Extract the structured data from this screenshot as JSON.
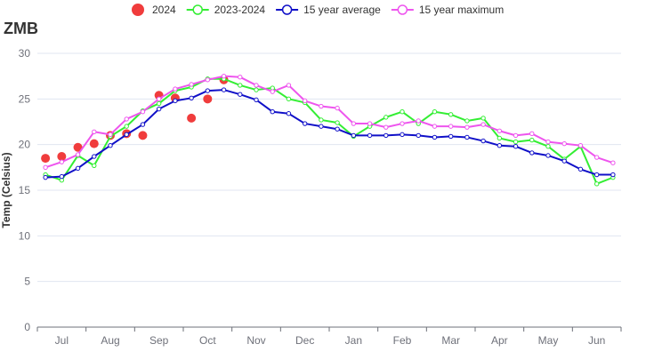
{
  "chart_data": {
    "type": "line",
    "title": "ZMB",
    "xlabel": "",
    "ylabel": "Temp (Celsius)",
    "ylim": [
      0,
      30
    ],
    "yticks": [
      0,
      5,
      10,
      15,
      20,
      25,
      30
    ],
    "x_dekads": 36,
    "month_labels": [
      "Jul",
      "Aug",
      "Sep",
      "Oct",
      "Nov",
      "Dec",
      "Jan",
      "Feb",
      "Mar",
      "Apr",
      "May",
      "Jun"
    ],
    "grid": "horizontal",
    "legend_position": "top-center",
    "series": [
      {
        "name": "2024",
        "style": "scatter",
        "color": "#f03c3c",
        "x": [
          0,
          1,
          2,
          3,
          4,
          5,
          6,
          7,
          8,
          9,
          10,
          11
        ],
        "values": [
          18.5,
          18.7,
          19.7,
          20.1,
          21.0,
          21.2,
          21.0,
          25.4,
          25.1,
          22.9,
          25.0,
          27.1
        ]
      },
      {
        "name": "2023-2024",
        "style": "line",
        "color": "#33ee33",
        "values": [
          16.7,
          16.1,
          18.8,
          17.7,
          20.9,
          22.0,
          23.7,
          24.5,
          25.9,
          26.3,
          27.2,
          27.2,
          26.5,
          26.0,
          26.2,
          25.0,
          24.6,
          22.7,
          22.4,
          20.9,
          22.0,
          23.0,
          23.6,
          22.3,
          23.6,
          23.3,
          22.6,
          22.9,
          20.7,
          20.3,
          20.5,
          19.8,
          18.4,
          19.8,
          15.7,
          16.4
        ]
      },
      {
        "name": "15 year average",
        "style": "line",
        "color": "#1010c8",
        "values": [
          16.4,
          16.5,
          17.4,
          18.7,
          19.9,
          21.1,
          22.2,
          23.9,
          24.8,
          25.1,
          25.9,
          26.0,
          25.5,
          24.9,
          23.6,
          23.4,
          22.3,
          22.0,
          21.7,
          21.0,
          21.0,
          21.0,
          21.1,
          21.0,
          20.8,
          20.9,
          20.8,
          20.4,
          19.9,
          19.8,
          19.1,
          18.8,
          18.2,
          17.3,
          16.7,
          16.7
        ]
      },
      {
        "name": "15 year maximum",
        "style": "line",
        "color": "#ee55ee",
        "values": [
          17.5,
          18.1,
          18.9,
          21.4,
          21.1,
          22.8,
          23.6,
          25.0,
          26.1,
          26.6,
          27.1,
          27.5,
          27.4,
          26.5,
          25.8,
          26.5,
          24.8,
          24.2,
          24.0,
          22.3,
          22.3,
          21.9,
          22.3,
          22.6,
          22.0,
          22.0,
          21.9,
          22.2,
          21.5,
          21.0,
          21.2,
          20.3,
          20.1,
          19.9,
          18.6,
          18.0
        ]
      }
    ]
  }
}
